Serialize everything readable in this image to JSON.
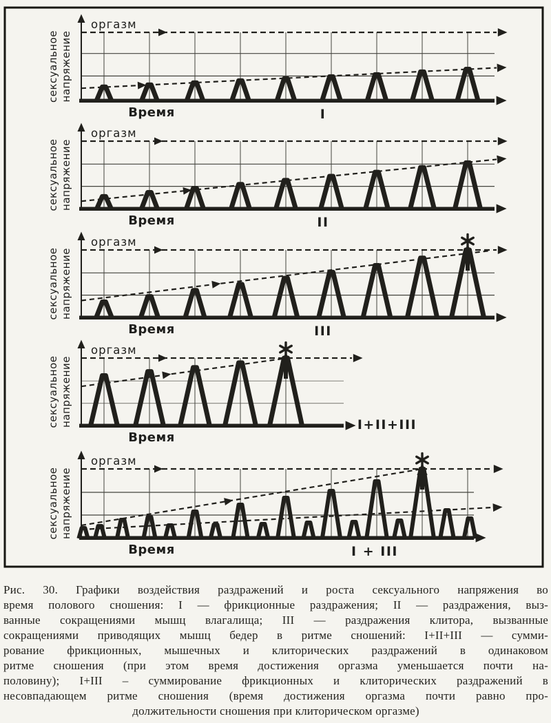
{
  "figure": {
    "orgasm_label": "оргазм",
    "time_label": "Время",
    "ylabel_line1": "сексуальное",
    "ylabel_line2": "напряжение",
    "star_char": "✱",
    "colors": {
      "ink": "#21201c",
      "paper": "#f5f4ef",
      "grid": "#44433e",
      "grid_light": "#91908a"
    }
  },
  "chart_data": [
    {
      "id": "I",
      "type": "line",
      "title": "I",
      "xlabel": "Время",
      "ylabel": "сексуальное напряжение",
      "ylim": [
        0,
        112
      ],
      "orgasm_level": 100,
      "reaches_orgasm": false,
      "spike_t": [
        0.055,
        0.165,
        0.275,
        0.385,
        0.495,
        0.605,
        0.715,
        0.825,
        0.935
      ],
      "spike_peak": [
        20,
        23,
        26,
        29,
        32,
        35,
        38,
        42,
        46
      ],
      "grid_t": [
        0.055,
        0.165,
        0.275,
        0.385,
        0.495,
        0.605,
        0.715,
        0.825,
        0.935
      ],
      "grid_v": [
        36,
        69
      ],
      "trends": [
        {
          "t0": 0,
          "v0": 18,
          "t1": 1.005,
          "v1": 48,
          "end_arrow": true,
          "mid_arrow_t": 0.14
        }
      ],
      "orgasm_line": {
        "t1": 1.005,
        "end_arrow": true,
        "mid_arrow_t": 0.19
      },
      "axis_end_t": 1.0,
      "grid_light": false,
      "star_t": null,
      "final_arrow_t": null,
      "label_t": 0.585,
      "label_where": "below"
    },
    {
      "id": "II",
      "type": "line",
      "title": "II",
      "xlabel": "Время",
      "ylabel": "сексуальное напряжение",
      "ylim": [
        0,
        112
      ],
      "orgasm_level": 100,
      "reaches_orgasm": false,
      "spike_t": [
        0.055,
        0.165,
        0.275,
        0.385,
        0.495,
        0.605,
        0.715,
        0.825,
        0.935
      ],
      "spike_peak": [
        18,
        24,
        30,
        36,
        42,
        48,
        54,
        61,
        68
      ],
      "grid_t": [
        0.055,
        0.165,
        0.275,
        0.385,
        0.495,
        0.605,
        0.715,
        0.825,
        0.935
      ],
      "grid_v": [
        33,
        66
      ],
      "trends": [
        {
          "t0": 0,
          "v0": 11,
          "t1": 1.005,
          "v1": 73,
          "end_arrow": true,
          "mid_arrow_t": 0.25
        }
      ],
      "orgasm_line": {
        "t1": 1.005,
        "end_arrow": true,
        "mid_arrow_t": 0.18
      },
      "axis_end_t": 1.0,
      "grid_light": false,
      "star_t": null,
      "final_arrow_t": null,
      "label_t": 0.585,
      "label_where": "below"
    },
    {
      "id": "III",
      "type": "line",
      "title": "III",
      "xlabel": "Время",
      "ylabel": "сексуальное напряжение",
      "ylim": [
        0,
        112
      ],
      "orgasm_level": 100,
      "reaches_orgasm": true,
      "spike_t": [
        0.055,
        0.165,
        0.275,
        0.385,
        0.495,
        0.605,
        0.715,
        0.825,
        0.935
      ],
      "spike_peak": [
        23,
        31,
        40,
        49,
        58,
        67,
        77,
        88,
        100
      ],
      "grid_t": [
        0.055,
        0.165,
        0.275,
        0.385,
        0.495,
        0.605,
        0.715,
        0.825,
        0.935
      ],
      "grid_v": [
        33,
        66
      ],
      "trends": [
        {
          "t0": 0,
          "v0": 25,
          "t1": 0.99,
          "v1": 99,
          "end_arrow": false,
          "mid_arrow_t": 0.32
        }
      ],
      "orgasm_line": {
        "t1": 1.005,
        "end_arrow": true,
        "mid_arrow_t": 0.18
      },
      "axis_end_t": 1.0,
      "grid_light": false,
      "star_t": 0.935,
      "final_arrow_t": 0.935,
      "label_t": 0.585,
      "label_where": "below"
    },
    {
      "id": "I+II+III",
      "type": "line",
      "title": "I+II+III",
      "xlabel": "Время",
      "ylabel": "сексуальное напряжение",
      "ylim": [
        0,
        112
      ],
      "orgasm_level": 100,
      "reaches_orgasm": true,
      "spike_t": [
        0.055,
        0.165,
        0.275,
        0.385,
        0.495
      ],
      "spike_peak": [
        74,
        80,
        86,
        93,
        100
      ],
      "grid_t": [
        0.055,
        0.165,
        0.275,
        0.385,
        0.495
      ],
      "grid_v": [
        33,
        66
      ],
      "trends": [
        {
          "t0": 0,
          "v0": 58,
          "t1": 0.5,
          "v1": 100,
          "end_arrow": false,
          "mid_arrow_t": 0.2
        }
      ],
      "orgasm_line": {
        "t1": 0.655,
        "end_arrow": true,
        "mid_arrow_t": 0.19
      },
      "axis_end_t": 0.635,
      "grid_light": true,
      "star_t": 0.495,
      "final_arrow_t": 0.495,
      "label_t": 0.74,
      "label_where": "baseline"
    },
    {
      "id": "I+III",
      "type": "line",
      "title": "I + III",
      "xlabel": "Время",
      "ylabel": "сексуальное напряжение",
      "ylim": [
        0,
        112
      ],
      "orgasm_level": 100,
      "reaches_orgasm": true,
      "spike_t": [
        0.005,
        0.045,
        0.1,
        0.165,
        0.215,
        0.275,
        0.325,
        0.385,
        0.44,
        0.495,
        0.55,
        0.605,
        0.66,
        0.715,
        0.77,
        0.825,
        0.885,
        0.94
      ],
      "spike_peak": [
        14,
        17,
        26,
        30,
        18,
        38,
        19,
        48,
        20,
        58,
        22,
        68,
        23,
        82,
        25,
        100,
        40,
        28
      ],
      "grid_t": [
        0.055,
        0.165,
        0.275,
        0.385,
        0.495,
        0.605,
        0.715,
        0.825,
        0.935
      ],
      "grid_v": [
        33,
        66
      ],
      "trends": [
        {
          "t0": 0,
          "v0": 18,
          "t1": 0.825,
          "v1": 100,
          "end_arrow": false,
          "mid_arrow_t": 0.35
        },
        {
          "t0": 0,
          "v0": 12,
          "t1": 0.995,
          "v1": 44,
          "end_arrow": true,
          "mid_arrow_t": null
        }
      ],
      "orgasm_line": {
        "t1": 0.995,
        "end_arrow": true,
        "mid_arrow_t": 0.18
      },
      "axis_end_t": 0.95,
      "grid_light": false,
      "star_t": 0.825,
      "final_arrow_t": 0.825,
      "label_t": 0.71,
      "label_where": "below"
    }
  ],
  "caption": {
    "figure_ref": "Рис. 30.",
    "lines": [
      "Рис. 30. Графики воздействия раздражений и роста сексуального напряжения во",
      "время полового сношения: I — фрикционные раздражения; II — раздражения, выз-",
      "ванные сокращениями мышц влагалища; III — раздражения клитора, вызванные",
      "сокращениями приводящих мышц бедер в ритме сношений: I+II+III — сумми-",
      "рование фрикционных, мышечных и клиторических раздражений в одинаковом",
      "ритме сношения (при этом время достижения оргазма уменьшается почти на-",
      "половину); I+III – суммирование фрикционных и клиторических раздражений в",
      "несовпадающем ритме сношения (время достижения оргазма почти равно про-",
      "должительности сношения при клиторическом оргазме)"
    ]
  }
}
